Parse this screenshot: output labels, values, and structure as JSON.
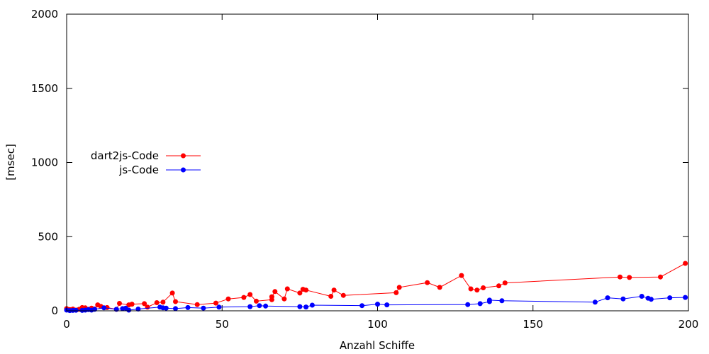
{
  "chart_data": {
    "type": "line",
    "title": "",
    "xlabel": "Anzahl Schiffe",
    "ylabel": "[msec]",
    "xlim": [
      0,
      200
    ],
    "ylim": [
      0,
      2000
    ],
    "xticks": [
      0,
      50,
      100,
      150,
      200
    ],
    "yticks": [
      0,
      500,
      1000,
      1500,
      2000
    ],
    "grid": false,
    "legend_position": "left",
    "series": [
      {
        "name": "dart2js-Code",
        "color": "#ff0000",
        "points": [
          [
            0,
            15
          ],
          [
            1,
            8
          ],
          [
            2,
            12
          ],
          [
            3,
            5
          ],
          [
            4,
            10
          ],
          [
            5,
            22
          ],
          [
            6,
            20
          ],
          [
            7,
            10
          ],
          [
            8,
            18
          ],
          [
            9,
            12
          ],
          [
            10,
            40
          ],
          [
            11,
            30
          ],
          [
            13,
            22
          ],
          [
            16,
            10
          ],
          [
            17,
            50
          ],
          [
            20,
            40
          ],
          [
            21,
            45
          ],
          [
            25,
            48
          ],
          [
            26,
            25
          ],
          [
            29,
            55
          ],
          [
            31,
            58
          ],
          [
            34,
            120
          ],
          [
            35,
            62
          ],
          [
            42,
            42
          ],
          [
            48,
            52
          ],
          [
            52,
            80
          ],
          [
            57,
            90
          ],
          [
            59,
            110
          ],
          [
            61,
            65
          ],
          [
            66,
            75
          ],
          [
            66,
            95
          ],
          [
            67,
            130
          ],
          [
            70,
            80
          ],
          [
            71,
            148
          ],
          [
            75,
            120
          ],
          [
            76,
            145
          ],
          [
            77,
            140
          ],
          [
            85,
            98
          ],
          [
            86,
            140
          ],
          [
            89,
            104
          ],
          [
            106,
            122
          ],
          [
            107,
            158
          ],
          [
            116,
            190
          ],
          [
            120,
            158
          ],
          [
            127,
            238
          ],
          [
            130,
            148
          ],
          [
            132,
            140
          ],
          [
            134,
            155
          ],
          [
            139,
            168
          ],
          [
            141,
            188
          ],
          [
            178,
            228
          ],
          [
            181,
            225
          ],
          [
            191,
            228
          ],
          [
            199,
            320
          ]
        ]
      },
      {
        "name": "js-Code",
        "color": "#0000ff",
        "points": [
          [
            0,
            5
          ],
          [
            1,
            2
          ],
          [
            2,
            3
          ],
          [
            3,
            4
          ],
          [
            5,
            3
          ],
          [
            6,
            5
          ],
          [
            7,
            8
          ],
          [
            8,
            5
          ],
          [
            9,
            10
          ],
          [
            12,
            20
          ],
          [
            16,
            10
          ],
          [
            18,
            15
          ],
          [
            19,
            18
          ],
          [
            20,
            5
          ],
          [
            23,
            12
          ],
          [
            30,
            25
          ],
          [
            31,
            20
          ],
          [
            32,
            18
          ],
          [
            35,
            15
          ],
          [
            39,
            22
          ],
          [
            44,
            18
          ],
          [
            49,
            25
          ],
          [
            59,
            28
          ],
          [
            62,
            35
          ],
          [
            64,
            32
          ],
          [
            75,
            28
          ],
          [
            77,
            26
          ],
          [
            79,
            38
          ],
          [
            95,
            35
          ],
          [
            100,
            45
          ],
          [
            103,
            40
          ],
          [
            129,
            42
          ],
          [
            133,
            48
          ],
          [
            136,
            62
          ],
          [
            136,
            72
          ],
          [
            140,
            68
          ],
          [
            170,
            58
          ],
          [
            174,
            88
          ],
          [
            179,
            80
          ],
          [
            185,
            98
          ],
          [
            187,
            85
          ],
          [
            188,
            78
          ],
          [
            194,
            88
          ],
          [
            199,
            90
          ]
        ]
      }
    ]
  }
}
